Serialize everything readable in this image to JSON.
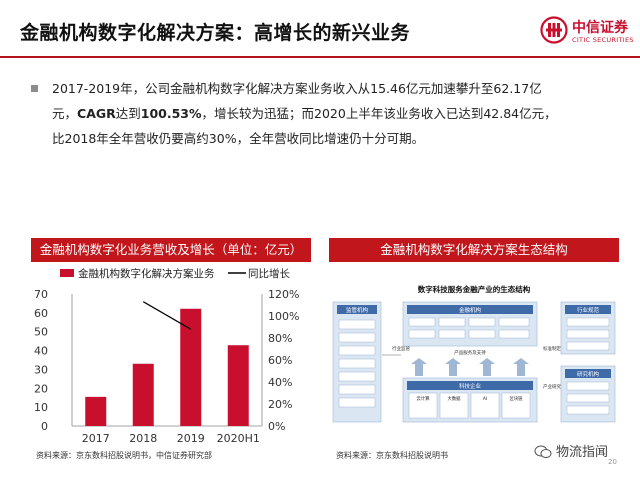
{
  "header": {
    "title": "金融机构数字化解决方案：高增长的新兴业务",
    "logo_cn": "中信证券",
    "logo_en": "CITIC SECURITIES"
  },
  "body": {
    "p1": "2017-2019年，公司金融机构数字化解决方案业务收入从15.46亿元加速攀升至62.17亿",
    "p2a": "元，",
    "p2b": "CAGR",
    "p2c": "达到",
    "p2d": "100.53%",
    "p2e": "，增长较为迅猛；而2020上半年该业务收入已达到42.84亿元，",
    "p3": "比2018年全年营收仍要高约30%，全年营收同比增速仍十分可期。"
  },
  "left_panel": {
    "heading": "金融机构数字化业务营收及增长（单位：亿元）",
    "source": "资料来源：京东数科招股说明书，中信证券研究部"
  },
  "right_panel": {
    "heading": "金融机构数字化解决方案生态结构",
    "diagram": {
      "title": "数字科技服务金融产业的生态结构",
      "left_col_title": "监管机构",
      "finance_title": "金融机构",
      "tech_title": "科技企业",
      "ops_title": "行业规范",
      "research_title": "研究机构",
      "label_supervise": "行业监管",
      "label_standard": "标准制定",
      "label_research": "产业研究",
      "label_product": "产品服务及支持",
      "tech_items": [
        "云计算",
        "大数据",
        "AI",
        "区块链"
      ]
    },
    "source": "资料来源：京东数科招股说明书"
  },
  "footer": {
    "watermark": "物流指闻",
    "page": "20"
  },
  "colors": {
    "brand": "#c0161c",
    "bar": "#c8102e",
    "line": "#000000"
  },
  "chart_data": {
    "type": "bar",
    "categories": [
      "2017",
      "2018",
      "2019",
      "2020H1"
    ],
    "series": [
      {
        "name": "金融机构数字化解决方案业务",
        "type": "bar",
        "axis": "left",
        "values": [
          15.46,
          33,
          62.17,
          42.84
        ]
      },
      {
        "name": "同比增长",
        "type": "line",
        "axis": "right",
        "values": [
          null,
          113,
          88,
          null
        ]
      }
    ],
    "ylim": [
      0,
      70
    ],
    "yticks": [
      "0",
      "10",
      "20",
      "30",
      "40",
      "50",
      "60",
      "70"
    ],
    "y2lim": [
      0,
      120
    ],
    "y2ticks": [
      "0%",
      "20%",
      "40%",
      "60%",
      "80%",
      "100%",
      "120%"
    ],
    "legend_position": "top",
    "grid": false
  }
}
